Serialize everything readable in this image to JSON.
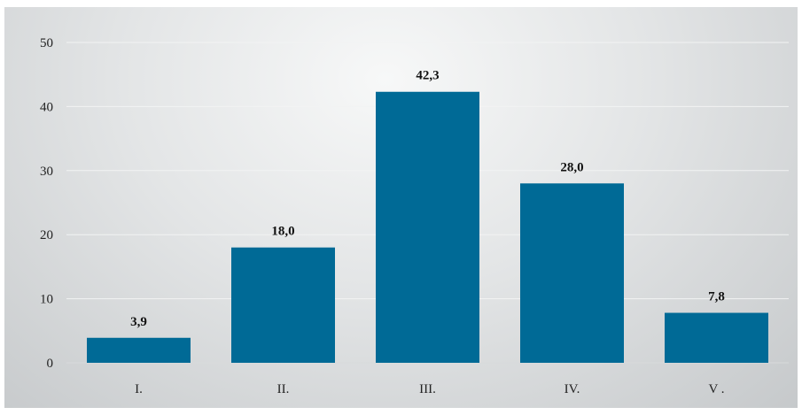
{
  "chart_data": {
    "type": "bar",
    "categories": [
      "I.",
      "II.",
      "III.",
      "IV.",
      "V ."
    ],
    "values": [
      3.9,
      18.0,
      42.3,
      28.0,
      7.8
    ],
    "value_labels": [
      "3,9",
      "18,0",
      "42,3",
      "28,0",
      "7,8"
    ],
    "title": "",
    "xlabel": "",
    "ylabel": "",
    "ylim": [
      0,
      50
    ],
    "yticks": [
      0,
      10,
      20,
      30,
      40,
      50
    ],
    "grid": true,
    "legend": "none",
    "bar_color": "#006a96",
    "grid_color": "#f2f3f3"
  }
}
